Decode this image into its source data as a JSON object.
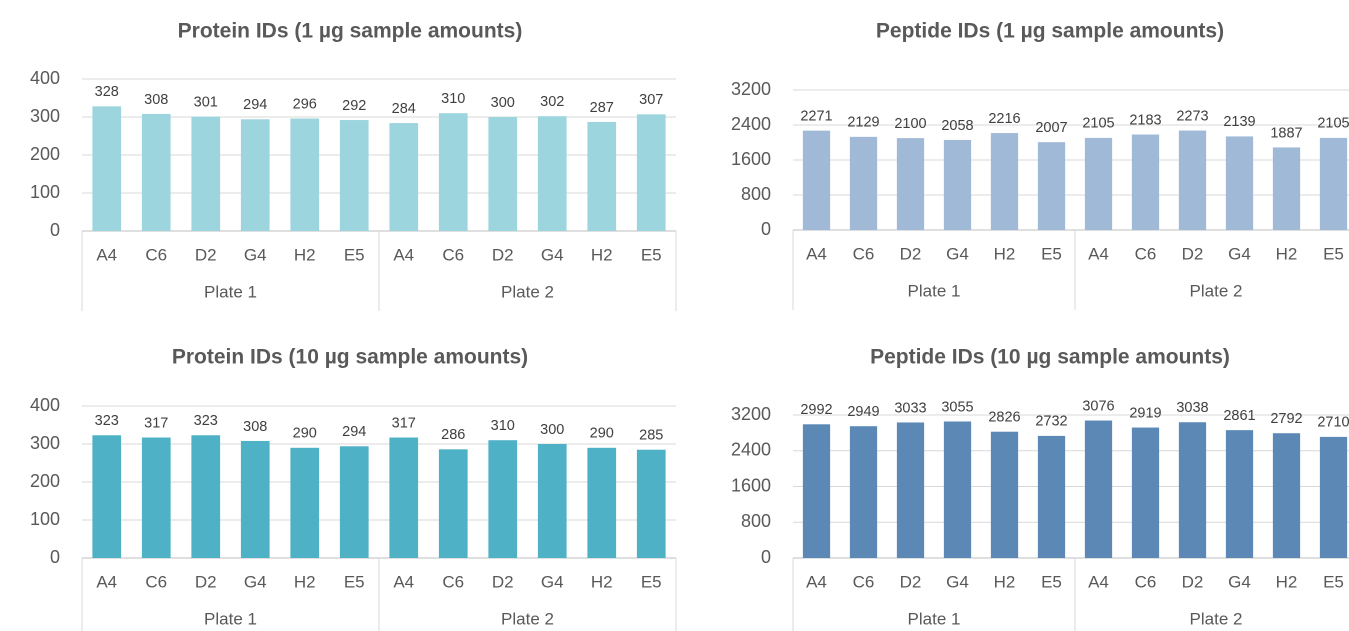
{
  "chart_data": [
    {
      "type": "bar",
      "title": "Protein IDs (1 µg sample amounts)",
      "categories": [
        "A4",
        "C6",
        "D2",
        "G4",
        "H2",
        "E5",
        "A4",
        "C6",
        "D2",
        "G4",
        "H2",
        "E5"
      ],
      "groups": [
        "Plate 1",
        "Plate 2"
      ],
      "values": [
        328,
        308,
        301,
        294,
        296,
        292,
        284,
        310,
        300,
        302,
        287,
        307
      ],
      "color": "#9dd5df",
      "ylim": [
        0,
        400
      ],
      "yticks": [
        0,
        100,
        200,
        300,
        400
      ],
      "grid": true
    },
    {
      "type": "bar",
      "title": "Peptide IDs (1 µg sample amounts)",
      "categories": [
        "A4",
        "C6",
        "D2",
        "G4",
        "H2",
        "E5",
        "A4",
        "C6",
        "D2",
        "G4",
        "H2",
        "E5"
      ],
      "groups": [
        "Plate 1",
        "Plate 2"
      ],
      "values": [
        2271,
        2129,
        2100,
        2058,
        2216,
        2007,
        2105,
        2183,
        2273,
        2139,
        1887,
        2105
      ],
      "color": "#a0b9d7",
      "ylim": [
        0,
        3200
      ],
      "yticks": [
        0,
        800,
        1600,
        2400,
        3200
      ],
      "grid": true
    },
    {
      "type": "bar",
      "title": "Protein IDs (10 µg sample amounts)",
      "categories": [
        "A4",
        "C6",
        "D2",
        "G4",
        "H2",
        "E5",
        "A4",
        "C6",
        "D2",
        "G4",
        "H2",
        "E5"
      ],
      "groups": [
        "Plate 1",
        "Plate 2"
      ],
      "values": [
        323,
        317,
        323,
        308,
        290,
        294,
        317,
        286,
        310,
        300,
        290,
        285
      ],
      "color": "#4fb1c6",
      "ylim": [
        0,
        400
      ],
      "yticks": [
        0,
        100,
        200,
        300,
        400
      ],
      "grid": true
    },
    {
      "type": "bar",
      "title": "Peptide IDs (10 µg sample amounts)",
      "categories": [
        "A4",
        "C6",
        "D2",
        "G4",
        "H2",
        "E5",
        "A4",
        "C6",
        "D2",
        "G4",
        "H2",
        "E5"
      ],
      "groups": [
        "Plate 1",
        "Plate 2"
      ],
      "values": [
        2992,
        2949,
        3033,
        3055,
        2826,
        2732,
        3076,
        2919,
        3038,
        2861,
        2792,
        2710
      ],
      "color": "#5b88b4",
      "ylim": [
        0,
        3200
      ],
      "yticks": [
        0,
        800,
        1600,
        2400,
        3200
      ],
      "grid": true
    }
  ]
}
